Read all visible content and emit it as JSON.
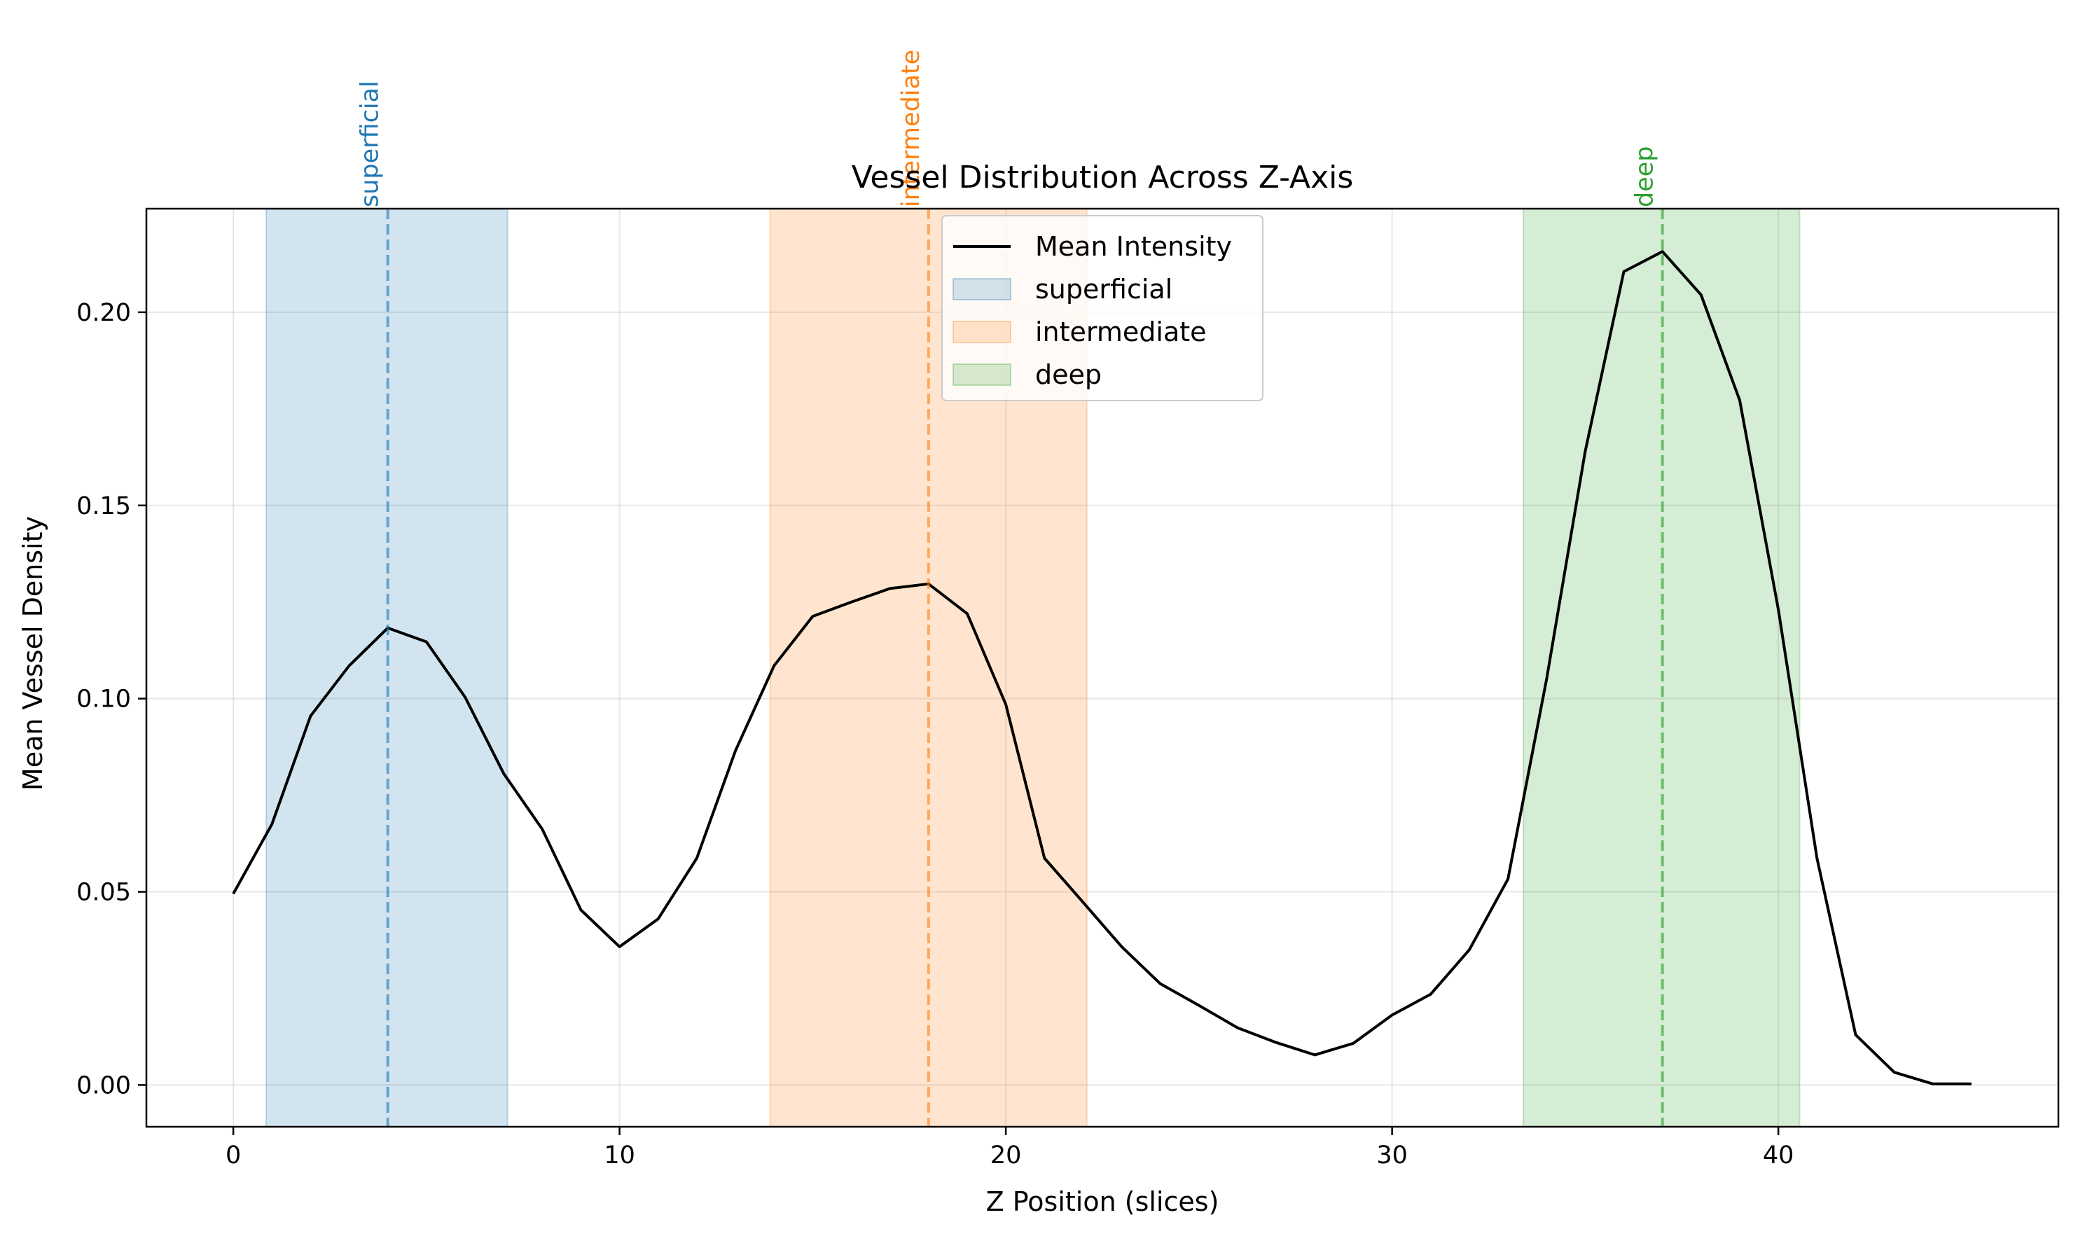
{
  "chart_data": {
    "type": "line",
    "title": "Vessel Distribution Across Z-Axis",
    "xlabel": "Z Position (slices)",
    "ylabel": "Mean Vessel Density",
    "xlim": [
      -2.25,
      47.25
    ],
    "ylim": [
      -0.0108,
      0.2268
    ],
    "x_ticks": [
      0,
      10,
      20,
      30,
      40
    ],
    "y_ticks": [
      0.0,
      0.05,
      0.1,
      0.15,
      0.2
    ],
    "x_tick_labels": [
      "0",
      "10",
      "20",
      "30",
      "40"
    ],
    "y_tick_labels": [
      "0.00",
      "0.05",
      "0.10",
      "0.15",
      "0.20"
    ],
    "grid": true,
    "legend_position": "top-center",
    "series": [
      {
        "name": "Mean Intensity",
        "color": "#000000",
        "x": [
          0,
          1,
          2,
          3,
          4,
          5,
          6,
          7,
          8,
          9,
          10,
          11,
          12,
          13,
          14,
          15,
          16,
          17,
          18,
          19,
          20,
          21,
          22,
          23,
          24,
          25,
          26,
          27,
          28,
          29,
          30,
          31,
          32,
          33,
          34,
          35,
          36,
          37,
          38,
          39,
          40,
          41,
          42,
          43,
          44,
          45
        ],
        "y": [
          0.0495,
          0.0675,
          0.0955,
          0.1085,
          0.1183,
          0.1147,
          0.1004,
          0.0806,
          0.0662,
          0.0453,
          0.0358,
          0.043,
          0.0587,
          0.0865,
          0.1085,
          0.1213,
          0.125,
          0.1285,
          0.1297,
          0.122,
          0.0985,
          0.0587,
          0.0473,
          0.0358,
          0.0262,
          0.0206,
          0.0148,
          0.011,
          0.0078,
          0.0108,
          0.0181,
          0.0235,
          0.035,
          0.0533,
          0.105,
          0.164,
          0.2105,
          0.2157,
          0.2045,
          0.1772,
          0.123,
          0.0587,
          0.013,
          0.0033,
          0.0003,
          0.0003
        ]
      }
    ],
    "regions": [
      {
        "name": "superficial",
        "start": 0.85,
        "end": 7.1,
        "center": 4,
        "color": "#1f77b4",
        "label": "superficial"
      },
      {
        "name": "intermediate",
        "start": 13.9,
        "end": 22.1,
        "center": 18,
        "color": "#ff7f0e",
        "label": "intermediate"
      },
      {
        "name": "deep",
        "start": 33.4,
        "end": 40.55,
        "center": 37,
        "color": "#2ca02c",
        "label": "deep"
      }
    ],
    "legend": [
      "Mean Intensity",
      "superficial",
      "intermediate",
      "deep"
    ]
  }
}
